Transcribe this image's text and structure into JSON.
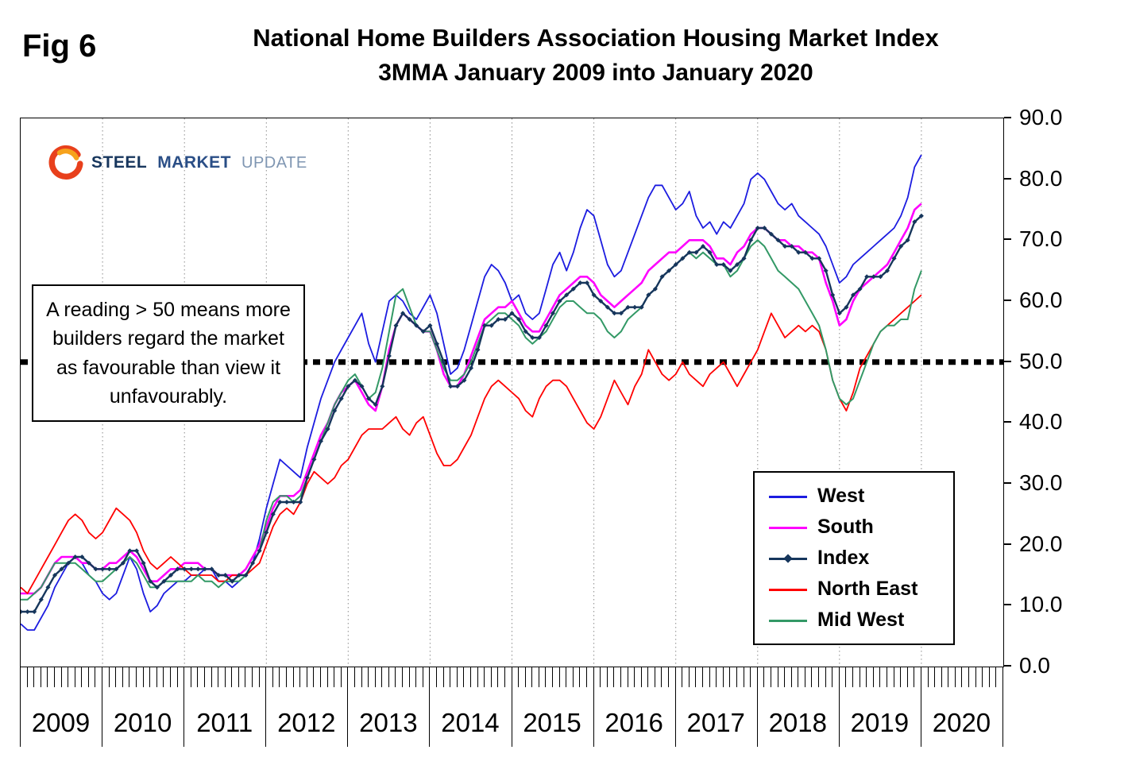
{
  "fig_label": "Fig 6",
  "title": "National Home Builders Association Housing Market Index",
  "subtitle": "3MMA January 2009 into January 2020",
  "logo": {
    "steel": "STEEL",
    "market": "MARKET",
    "update": "UPDATE"
  },
  "annotation": {
    "text": "A reading > 50 means more builders regard the market as favourable than view it unfavourably."
  },
  "chart_data": {
    "type": "line",
    "title": "National Home Builders Association Housing Market Index",
    "subtitle": "3MMA January 2009 into January 2020",
    "x_unit": "month",
    "x_start": "2009-01",
    "x_end": "2020-01",
    "x_total_months": 144,
    "x_years": [
      "2009",
      "2010",
      "2011",
      "2012",
      "2013",
      "2014",
      "2015",
      "2016",
      "2017",
      "2018",
      "2019",
      "2020"
    ],
    "ylim": [
      0,
      90
    ],
    "y_ticks": [
      90,
      80,
      70,
      60,
      50,
      40,
      30,
      20,
      10,
      0
    ],
    "y_tick_labels": [
      "90.0",
      "80.0",
      "70.0",
      "60.0",
      "50.0",
      "40.0",
      "30.0",
      "20.0",
      "10.0",
      "0.0"
    ],
    "grid": "vertical dotted gridlines at each year boundary; no horizontal gridlines",
    "legend_position": "inside lower-right",
    "reference_line": {
      "value": 50,
      "color": "#000000",
      "style": "heavy dashed"
    },
    "series": [
      {
        "name": "West",
        "color": "#1C1CE0",
        "values": [
          7,
          6,
          6,
          8,
          10,
          13,
          15,
          17,
          18,
          17,
          15,
          14,
          12,
          11,
          12,
          15,
          18,
          16,
          12,
          9,
          10,
          12,
          13,
          14,
          14,
          15,
          15,
          16,
          16,
          14,
          14,
          13,
          14,
          15,
          17,
          21,
          26,
          30,
          34,
          33,
          32,
          31,
          36,
          40,
          44,
          47,
          50,
          52,
          54,
          56,
          58,
          53,
          50,
          55,
          60,
          61,
          60,
          58,
          57,
          59,
          61,
          58,
          53,
          48,
          49,
          52,
          56,
          60,
          64,
          66,
          65,
          63,
          60,
          61,
          58,
          57,
          58,
          62,
          66,
          68,
          65,
          68,
          72,
          75,
          74,
          70,
          66,
          64,
          65,
          68,
          71,
          74,
          77,
          79,
          79,
          77,
          75,
          76,
          78,
          74,
          72,
          73,
          71,
          73,
          72,
          74,
          76,
          80,
          81,
          80,
          78,
          76,
          75,
          76,
          74,
          73,
          72,
          71,
          69,
          66,
          63,
          64,
          66,
          67,
          68,
          69,
          70,
          71,
          72,
          74,
          77,
          82,
          84
        ]
      },
      {
        "name": "South",
        "color": "#FF00FF",
        "values": [
          12,
          12,
          12,
          13,
          15,
          17,
          18,
          18,
          18,
          17,
          17,
          16,
          16,
          17,
          17,
          18,
          19,
          18,
          16,
          14,
          14,
          15,
          16,
          16,
          17,
          17,
          17,
          16,
          16,
          15,
          15,
          15,
          15,
          16,
          18,
          20,
          23,
          26,
          28,
          28,
          28,
          29,
          32,
          35,
          38,
          40,
          43,
          45,
          46,
          47,
          45,
          43,
          42,
          46,
          52,
          56,
          58,
          57,
          56,
          55,
          55,
          52,
          48,
          46,
          46,
          48,
          51,
          54,
          57,
          58,
          59,
          59,
          60,
          58,
          56,
          55,
          55,
          57,
          59,
          61,
          62,
          63,
          64,
          64,
          63,
          61,
          60,
          59,
          60,
          61,
          62,
          63,
          65,
          66,
          67,
          68,
          68,
          69,
          70,
          70,
          70,
          69,
          67,
          67,
          66,
          68,
          69,
          71,
          72,
          72,
          71,
          70,
          70,
          69,
          69,
          68,
          68,
          67,
          63,
          60,
          56,
          57,
          60,
          62,
          63,
          64,
          65,
          66,
          68,
          70,
          72,
          75,
          76
        ]
      },
      {
        "name": "Index",
        "color": "#16365C",
        "marker": "diamond",
        "values": [
          9,
          9,
          9,
          11,
          13,
          15,
          16,
          17,
          18,
          18,
          17,
          16,
          16,
          16,
          16,
          17,
          19,
          19,
          17,
          14,
          13,
          14,
          15,
          16,
          16,
          16,
          16,
          16,
          16,
          15,
          15,
          14,
          15,
          15,
          17,
          19,
          22,
          25,
          27,
          27,
          27,
          27,
          31,
          34,
          37,
          39,
          42,
          44,
          46,
          47,
          46,
          44,
          43,
          46,
          51,
          56,
          58,
          57,
          56,
          55,
          56,
          53,
          50,
          46,
          46,
          47,
          49,
          52,
          56,
          56,
          57,
          57,
          58,
          57,
          55,
          54,
          54,
          56,
          58,
          60,
          61,
          62,
          63,
          63,
          61,
          60,
          59,
          58,
          58,
          59,
          59,
          59,
          61,
          62,
          64,
          65,
          66,
          67,
          68,
          68,
          69,
          68,
          66,
          66,
          65,
          66,
          67,
          70,
          72,
          72,
          71,
          70,
          69,
          69,
          68,
          68,
          67,
          67,
          65,
          61,
          58,
          59,
          61,
          62,
          64,
          64,
          64,
          65,
          67,
          69,
          70,
          73,
          74
        ]
      },
      {
        "name": "North East",
        "color": "#FF0000",
        "values": [
          13,
          12,
          14,
          16,
          18,
          20,
          22,
          24,
          25,
          24,
          22,
          21,
          22,
          24,
          26,
          25,
          24,
          22,
          19,
          17,
          16,
          17,
          18,
          17,
          16,
          15,
          15,
          15,
          15,
          14,
          14,
          15,
          15,
          15,
          16,
          17,
          20,
          23,
          25,
          26,
          25,
          27,
          30,
          32,
          31,
          30,
          31,
          33,
          34,
          36,
          38,
          39,
          39,
          39,
          40,
          41,
          39,
          38,
          40,
          41,
          38,
          35,
          33,
          33,
          34,
          36,
          38,
          41,
          44,
          46,
          47,
          46,
          45,
          44,
          42,
          41,
          44,
          46,
          47,
          47,
          46,
          44,
          42,
          40,
          39,
          41,
          44,
          47,
          45,
          43,
          46,
          48,
          52,
          50,
          48,
          47,
          48,
          50,
          48,
          47,
          46,
          48,
          49,
          50,
          48,
          46,
          48,
          50,
          52,
          55,
          58,
          56,
          54,
          55,
          56,
          55,
          56,
          55,
          52,
          47,
          44,
          42,
          45,
          49,
          51,
          53,
          55,
          56,
          57,
          58,
          59,
          60,
          61
        ]
      },
      {
        "name": "Mid West",
        "color": "#339966",
        "values": [
          11,
          11,
          12,
          13,
          15,
          17,
          17,
          17,
          17,
          16,
          15,
          14,
          14,
          15,
          16,
          17,
          18,
          17,
          15,
          13,
          13,
          14,
          14,
          14,
          14,
          14,
          15,
          14,
          14,
          13,
          14,
          14,
          14,
          15,
          17,
          19,
          24,
          27,
          28,
          28,
          27,
          28,
          31,
          34,
          37,
          40,
          43,
          45,
          47,
          48,
          46,
          44,
          45,
          49,
          55,
          61,
          62,
          59,
          56,
          55,
          55,
          52,
          49,
          47,
          47,
          48,
          50,
          53,
          56,
          57,
          58,
          58,
          57,
          56,
          54,
          53,
          54,
          55,
          57,
          59,
          60,
          60,
          59,
          58,
          58,
          57,
          55,
          54,
          55,
          57,
          58,
          59,
          61,
          62,
          64,
          65,
          66,
          67,
          68,
          67,
          68,
          67,
          66,
          66,
          64,
          65,
          67,
          69,
          70,
          69,
          67,
          65,
          64,
          63,
          62,
          60,
          58,
          56,
          52,
          47,
          44,
          43,
          44,
          47,
          50,
          53,
          55,
          56,
          56,
          57,
          57,
          62,
          65
        ]
      }
    ]
  }
}
